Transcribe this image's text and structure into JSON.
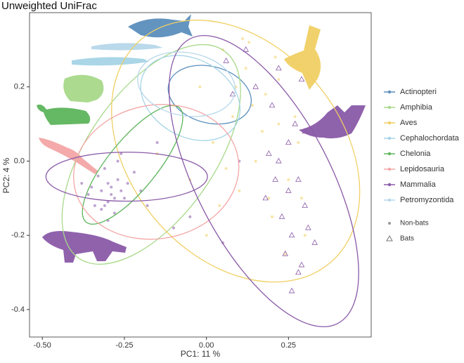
{
  "chart_data": {
    "type": "scatter",
    "title": "Unweighted UniFrac",
    "x_label": "PC1:  11 %",
    "y_label": "PC2:  4 %",
    "xlim": [
      -0.539,
      0.502
    ],
    "ylim": [
      -0.474,
      0.4
    ],
    "xticks": [
      {
        "value": -0.5,
        "label": "-0.50"
      },
      {
        "value": -0.25,
        "label": "-0.25"
      },
      {
        "value": 0,
        "label": "0.00"
      },
      {
        "value": 0.25,
        "label": "0.25"
      }
    ],
    "yticks": [
      -0.4,
      -0.2,
      {
        "value": 0,
        "label": "0.0"
      },
      0.2
    ],
    "markers": [
      {
        "name": "Non-bats",
        "marker": "circle"
      },
      {
        "name": "Bats",
        "marker": "triangle"
      }
    ],
    "groups": [
      {
        "name": "Actinopteri",
        "color": "#5b8fbd",
        "ellipses": [
          {
            "center": [
              0.01,
              0.179
            ],
            "radii": [
              0.129,
              0.076
            ],
            "angle": 15
          }
        ],
        "series": []
      },
      {
        "name": "Amphibia",
        "color": "#a8d98a",
        "ellipses": [
          {
            "center": [
              -0.168,
              0.018
            ],
            "radii": [
              0.386,
              0.17
            ],
            "angle": -55
          }
        ],
        "series": []
      },
      {
        "name": "Aves",
        "color": "#f0cf63",
        "ellipses": [
          {
            "center": [
              0.089,
              0.027
            ],
            "radii": [
              0.446,
              0.284
            ],
            "angle": 50
          }
        ],
        "series": [
          {
            "marker": "circle",
            "x": [
              0.05,
              0.12,
              0.18,
              0.22,
              0.28,
              0.08,
              -0.02,
              0.15,
              0.25,
              0.1,
              0.2,
              0.3,
              0.02,
              -0.1,
              0.13,
              0.22,
              0.06,
              0.17,
              0.27,
              -0.05,
              0.09,
              0.19,
              0.24,
              0.04,
              0.14,
              -0.15,
              0.11,
              0.21,
              0.29,
              0.0
            ],
            "y": [
              0.3,
              0.25,
              0.18,
              0.1,
              0.05,
              0.12,
              0.2,
              0.0,
              -0.05,
              -0.08,
              -0.15,
              -0.2,
              0.05,
              0.15,
              0.32,
              0.22,
              -0.02,
              0.08,
              0.12,
              -0.05,
              0.2,
              -0.1,
              -0.25,
              -0.12,
              0.15,
              0.02,
              0.33,
              0.28,
              -0.1,
              -0.2
            ]
          }
        ]
      },
      {
        "name": "Cephalochordata",
        "color": "#a6d4e6",
        "ellipses": [
          {
            "center": [
              -0.049,
              0.17
            ],
            "radii": [
              0.161,
              0.104
            ],
            "angle": 30
          }
        ],
        "series": []
      },
      {
        "name": "Chelonia",
        "color": "#5db55c",
        "ellipses": [
          {
            "center": [
              -0.225,
              -0.01
            ],
            "radii": [
              0.225,
              0.066
            ],
            "angle": -51
          }
        ],
        "series": []
      },
      {
        "name": "Lepidosauria",
        "color": "#f4a6a6",
        "ellipses": [
          {
            "center": [
              -0.153,
              -0.029
            ],
            "radii": [
              0.253,
              0.18
            ],
            "angle": -10
          }
        ],
        "series": []
      },
      {
        "name": "Mammalia",
        "color": "#8a5aa8",
        "ellipses": [
          {
            "center": [
              -0.243,
              -0.042
            ],
            "radii": [
              0.246,
              0.066
            ],
            "angle": 0
          },
          {
            "center": [
              0.175,
              -0.054
            ],
            "radii": [
              0.489,
              0.18
            ],
            "angle": 62.6
          }
        ],
        "series": [
          {
            "marker": "circle",
            "x": [
              -0.32,
              -0.3,
              -0.28,
              -0.35,
              -0.27,
              -0.31,
              -0.29,
              -0.33,
              -0.26,
              -0.3,
              -0.24,
              -0.36,
              -0.22,
              -0.28,
              -0.34,
              -0.31,
              -0.25,
              -0.2,
              -0.38,
              -0.29,
              -0.27,
              -0.32,
              -0.18,
              -0.15,
              -0.1,
              0.05,
              -0.05,
              0.1,
              -0.3,
              -0.26
            ],
            "y": [
              -0.08,
              -0.06,
              -0.1,
              -0.07,
              -0.05,
              -0.12,
              -0.09,
              -0.04,
              -0.08,
              -0.11,
              -0.06,
              -0.09,
              -0.03,
              -0.14,
              -0.12,
              -0.02,
              -0.1,
              -0.08,
              -0.06,
              -0.07,
              0.0,
              -0.13,
              -0.12,
              0.05,
              -0.18,
              -0.22,
              -0.15,
              0.0,
              -0.16,
              0.02
            ]
          },
          {
            "marker": "triangle",
            "x": [
              0.2,
              0.25,
              0.28,
              0.22,
              0.3,
              0.26,
              0.18,
              0.24,
              0.29,
              0.27,
              0.31,
              0.23,
              0.15,
              0.21,
              0.19,
              0.28,
              0.3,
              0.25,
              0.12,
              0.08,
              0.33,
              0.26,
              0.22,
              0.29,
              0.06
            ],
            "y": [
              0.15,
              0.05,
              -0.05,
              0.0,
              -0.12,
              -0.2,
              -0.1,
              -0.25,
              -0.28,
              0.1,
              -0.18,
              -0.15,
              0.2,
              -0.05,
              0.02,
              -0.3,
              0.08,
              -0.08,
              0.3,
              0.18,
              -0.22,
              -0.35,
              0.25,
              0.22,
              0.27
            ]
          }
        ]
      },
      {
        "name": "Petromyzontida",
        "color": "#b7d7ea",
        "ellipses": [
          {
            "center": [
              -0.061,
              0.207
            ],
            "radii": [
              0.15,
              0.085
            ],
            "angle": 10
          }
        ],
        "series": []
      }
    ]
  }
}
